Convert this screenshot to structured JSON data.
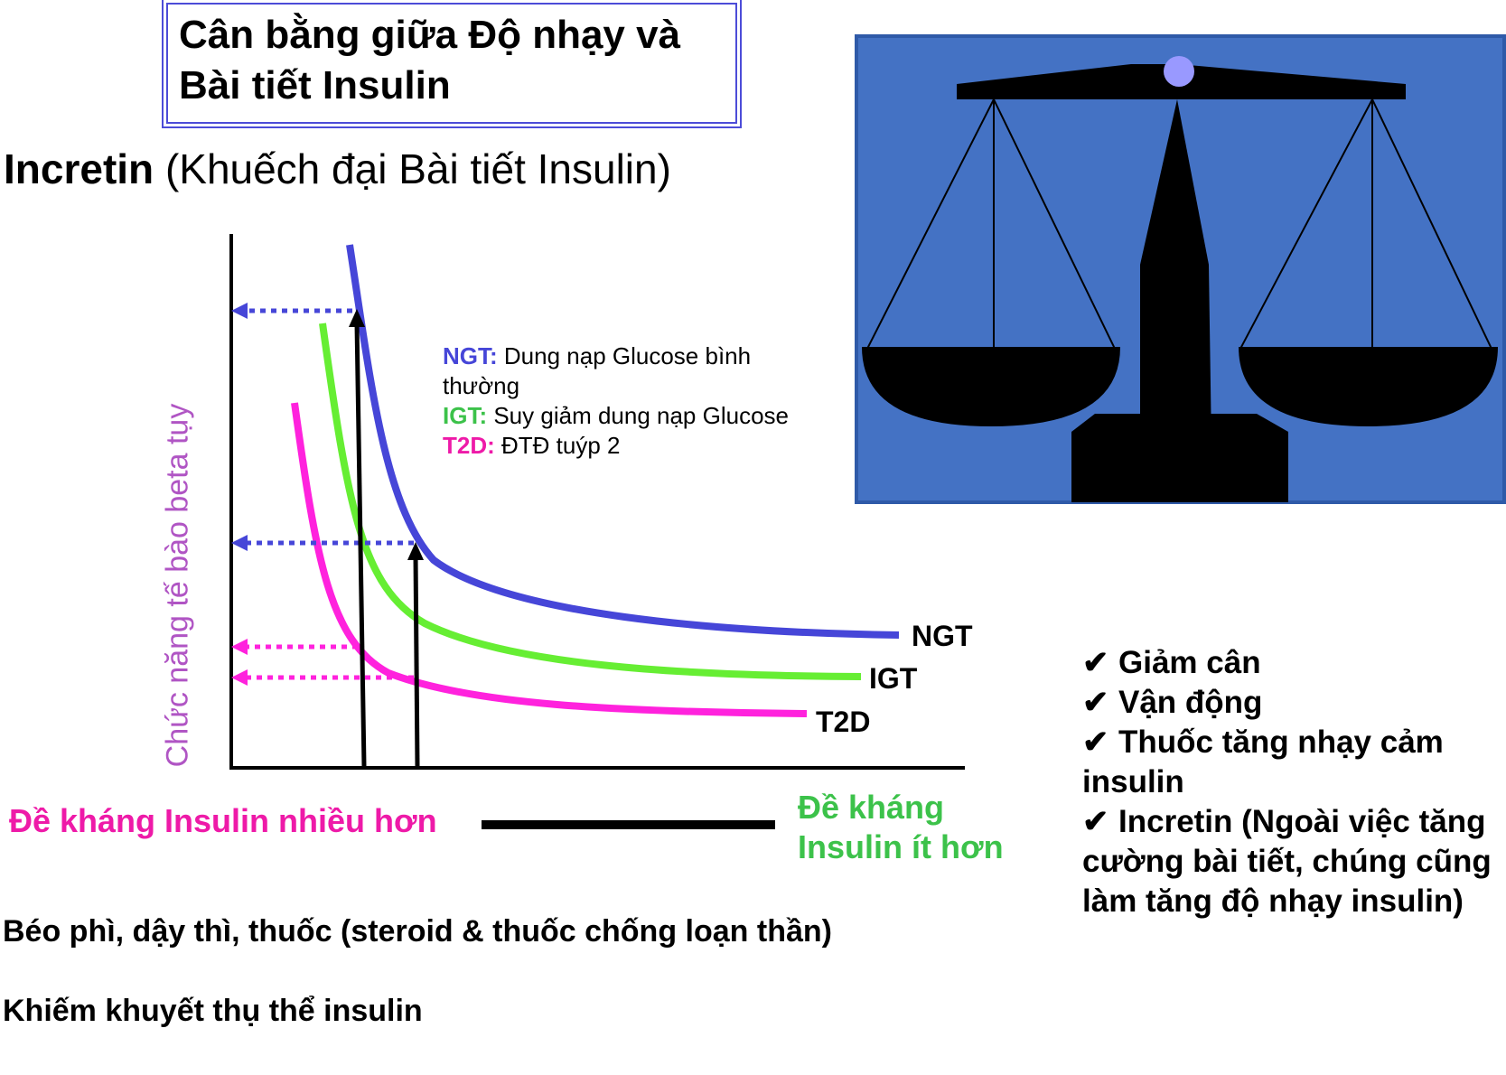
{
  "title": {
    "line1": "Cân bằng giữa Độ nhạy và",
    "line2": "Bài tiết Insulin"
  },
  "subtitle": {
    "bold": "Incretin",
    "rest": "(Khuếch đại Bài tiết Insulin)"
  },
  "y_axis_label": "Chức năng tế bào beta tụy",
  "legend": [
    {
      "key": "NGT:",
      "text": "Dung nạp Glucose bình",
      "text2": "thường",
      "color": "#4646d8"
    },
    {
      "key": "IGT:",
      "text": "Suy giảm dung nạp Glucose",
      "color": "#3cc24a"
    },
    {
      "key": "T2D:",
      "text": "ĐTĐ tuýp 2",
      "color": "#ee1aa8"
    }
  ],
  "curve_labels": {
    "ngt": "NGT",
    "igt": "IGT",
    "t2d": "T2D"
  },
  "colors": {
    "ngt": "#4646d8",
    "igt": "#66ee33",
    "t2d": "#ff22dd",
    "scale_background": "#4472c4",
    "scale_pivot": "#9999ff"
  },
  "resistance": {
    "more": "Đề kháng Insulin nhiều hơn",
    "less_line1": "Đề kháng",
    "less_line2": "Insulin ít hơn"
  },
  "causes": {
    "line1": "Béo phì, dậy thì, thuốc (steroid & thuốc chống loạn thần)",
    "line2": "Khiếm khuyết thụ thể insulin"
  },
  "interventions": [
    {
      "check": "✔",
      "text": "Giảm cân"
    },
    {
      "check": "✔",
      "text": "Vận động"
    },
    {
      "check": "✔",
      "text": "Thuốc tăng nhạy cảm insulin"
    },
    {
      "check": "✔",
      "text": "Incretin (Ngoài việc tăng cường bài tiết, chúng cũng làm tăng độ nhạy insulin)"
    }
  ],
  "icons": {
    "scale": "balance-scale-icon"
  }
}
